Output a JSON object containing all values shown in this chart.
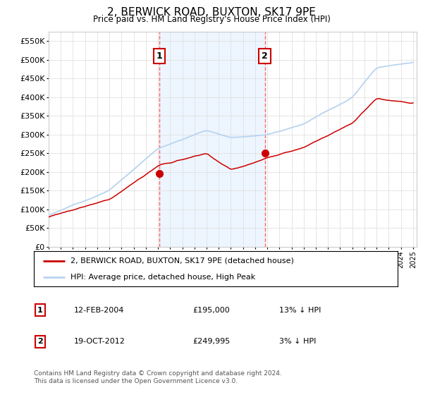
{
  "title": "2, BERWICK ROAD, BUXTON, SK17 9PE",
  "subtitle": "Price paid vs. HM Land Registry's House Price Index (HPI)",
  "ylabel_ticks": [
    "£0",
    "£50K",
    "£100K",
    "£150K",
    "£200K",
    "£250K",
    "£300K",
    "£350K",
    "£400K",
    "£450K",
    "£500K",
    "£550K"
  ],
  "ylim": [
    0,
    575000
  ],
  "xlim_start": 1995.0,
  "xlim_end": 2025.3,
  "legend_line1": "2, BERWICK ROAD, BUXTON, SK17 9PE (detached house)",
  "legend_line2": "HPI: Average price, detached house, High Peak",
  "annotation1_label": "1",
  "annotation1_date": "12-FEB-2004",
  "annotation1_price": "£195,000",
  "annotation1_hpi": "13% ↓ HPI",
  "annotation2_label": "2",
  "annotation2_date": "19-OCT-2012",
  "annotation2_price": "£249,995",
  "annotation2_hpi": "3% ↓ HPI",
  "footer": "Contains HM Land Registry data © Crown copyright and database right 2024.\nThis data is licensed under the Open Government Licence v3.0.",
  "hpi_color": "#b8d4f0",
  "price_color": "#cc0000",
  "dashed_color": "#ff6666",
  "marker_color": "#cc0000",
  "annotation_box_color": "#cc0000",
  "grid_color": "#e0e0e0",
  "background_color": "#ffffff",
  "between_fill_color": "#ddeeff"
}
